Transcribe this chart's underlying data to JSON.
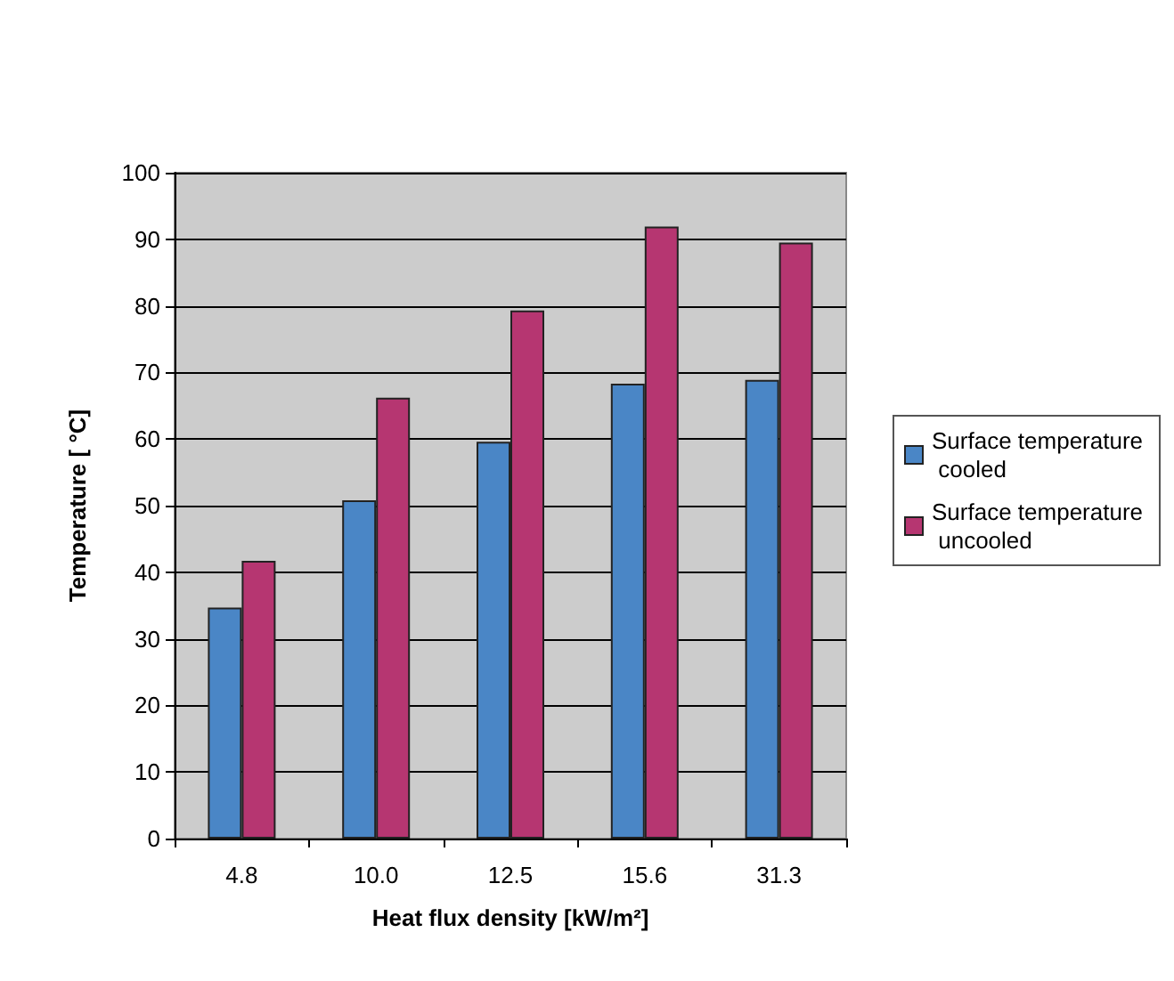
{
  "chart_data": {
    "type": "bar",
    "xlabel": "Heat flux density [kW/m²]",
    "ylabel": "Temperature [ °C]",
    "categories": [
      "4.8",
      "10.0",
      "12.5",
      "15.6",
      "31.3"
    ],
    "series": [
      {
        "name": "Surface temperature cooled",
        "color": "#4a86c6",
        "values": [
          34.7,
          50.8,
          59.6,
          68.3,
          68.9
        ]
      },
      {
        "name": "Surface temperature uncooled",
        "color": "#b63671",
        "values": [
          41.7,
          66.2,
          79.3,
          91.9,
          89.5
        ]
      }
    ],
    "ylim": [
      0,
      100
    ],
    "yticks": [
      0,
      10,
      20,
      30,
      40,
      50,
      60,
      70,
      80,
      90,
      100
    ],
    "grid": "y",
    "legend": "right"
  }
}
